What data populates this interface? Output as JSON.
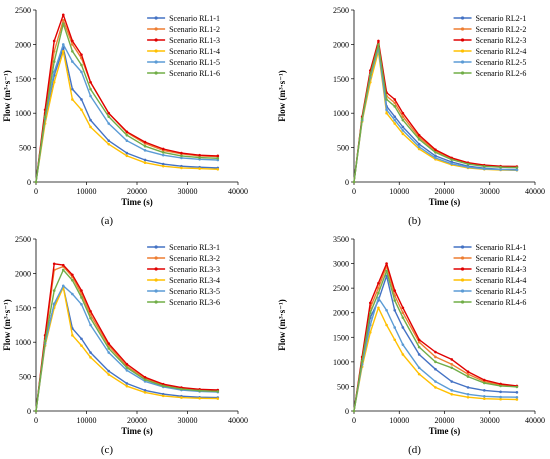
{
  "figure": {
    "panels": [
      {
        "label": "(a)",
        "chart_data": {
          "type": "line",
          "xlabel": "Time (s)",
          "ylabel": "Flow (m³·s⁻¹)",
          "xlim": [
            0,
            40000
          ],
          "ylim": [
            0,
            2500
          ],
          "xticks": [
            0,
            10000,
            20000,
            30000,
            40000
          ],
          "yticks": [
            0,
            500,
            1000,
            1500,
            2000,
            2500
          ],
          "grid": false,
          "legend": "top-right",
          "x": [
            0,
            1800,
            3600,
            5400,
            7200,
            9000,
            10800,
            14400,
            18000,
            21600,
            25200,
            28800,
            32400,
            36000
          ],
          "series": [
            {
              "name": "Scenario RL1-1",
              "color": "#4472C4",
              "values": [
                0,
                900,
                1550,
                1950,
                1350,
                1200,
                900,
                600,
                420,
                320,
                260,
                230,
                215,
                205
              ]
            },
            {
              "name": "Scenario RL1-2",
              "color": "#ED7D31",
              "values": [
                0,
                1000,
                1900,
                2350,
                2000,
                1800,
                1450,
                1000,
                720,
                560,
                460,
                410,
                380,
                370
              ]
            },
            {
              "name": "Scenario RL1-3",
              "color": "#E00000",
              "values": [
                0,
                1050,
                2050,
                2430,
                2050,
                1850,
                1450,
                1000,
                730,
                580,
                480,
                420,
                390,
                380
              ]
            },
            {
              "name": "Scenario RL1-4",
              "color": "#FFC000",
              "values": [
                0,
                850,
                1450,
                1900,
                1200,
                1050,
                800,
                550,
                380,
                280,
                230,
                205,
                195,
                185
              ]
            },
            {
              "name": "Scenario RL1-5",
              "color": "#5B9BD5",
              "values": [
                0,
                920,
                1600,
                2000,
                1750,
                1600,
                1250,
                850,
                600,
                460,
                390,
                350,
                330,
                320
              ]
            },
            {
              "name": "Scenario RL1-6",
              "color": "#70AD47",
              "values": [
                0,
                950,
                1750,
                2300,
                1900,
                1700,
                1350,
                950,
                680,
                520,
                430,
                380,
                355,
                345
              ]
            }
          ]
        }
      },
      {
        "label": "(b)",
        "chart_data": {
          "type": "line",
          "xlabel": "Time (s)",
          "ylabel": "Flow (m³·s⁻¹)",
          "xlim": [
            0,
            40000
          ],
          "ylim": [
            0,
            2500
          ],
          "xticks": [
            0,
            10000,
            20000,
            30000,
            40000
          ],
          "yticks": [
            0,
            500,
            1000,
            1500,
            2000,
            2500
          ],
          "grid": false,
          "legend": "top-right",
          "x": [
            0,
            1800,
            3600,
            5400,
            7200,
            9000,
            10800,
            14400,
            18000,
            21600,
            25200,
            28800,
            32400,
            36000
          ],
          "series": [
            {
              "name": "Scenario RL2-1",
              "color": "#4472C4",
              "values": [
                0,
                900,
                1500,
                1950,
                1100,
                950,
                800,
                550,
                380,
                290,
                230,
                200,
                185,
                180
              ]
            },
            {
              "name": "Scenario RL2-2",
              "color": "#ED7D31",
              "values": [
                0,
                930,
                1580,
                2020,
                1250,
                1150,
                950,
                650,
                450,
                340,
                270,
                235,
                220,
                215
              ]
            },
            {
              "name": "Scenario RL2-3",
              "color": "#E00000",
              "values": [
                0,
                950,
                1620,
                2050,
                1300,
                1200,
                1000,
                680,
                470,
                350,
                280,
                245,
                230,
                225
              ]
            },
            {
              "name": "Scenario RL2-4",
              "color": "#FFC000",
              "values": [
                0,
                880,
                1450,
                1900,
                1000,
                850,
                700,
                480,
                330,
                250,
                205,
                185,
                175,
                170
              ]
            },
            {
              "name": "Scenario RL2-5",
              "color": "#5B9BD5",
              "values": [
                0,
                900,
                1520,
                1950,
                1050,
                900,
                750,
                510,
                350,
                265,
                215,
                190,
                180,
                175
              ]
            },
            {
              "name": "Scenario RL2-6",
              "color": "#70AD47",
              "values": [
                0,
                920,
                1560,
                2000,
                1200,
                1100,
                900,
                620,
                430,
                325,
                260,
                228,
                215,
                210
              ]
            }
          ]
        }
      },
      {
        "label": "(c)",
        "chart_data": {
          "type": "line",
          "xlabel": "Time (s)",
          "ylabel": "Flow (m³·s⁻¹)",
          "xlim": [
            0,
            40000
          ],
          "ylim": [
            0,
            2500
          ],
          "xticks": [
            0,
            10000,
            20000,
            30000,
            40000
          ],
          "yticks": [
            0,
            500,
            1000,
            1500,
            2000,
            2500
          ],
          "grid": false,
          "legend": "top-right",
          "x": [
            0,
            1800,
            3600,
            5400,
            7200,
            9000,
            10800,
            14400,
            18000,
            21600,
            25200,
            28800,
            32400,
            36000
          ],
          "series": [
            {
              "name": "Scenario RL3-1",
              "color": "#4472C4",
              "values": [
                0,
                1000,
                1550,
                1800,
                1200,
                1050,
                850,
                580,
                400,
                300,
                245,
                215,
                200,
                195
              ]
            },
            {
              "name": "Scenario RL3-2",
              "color": "#ED7D31",
              "values": [
                0,
                1050,
                2050,
                2100,
                1950,
                1700,
                1400,
                950,
                650,
                470,
                380,
                330,
                305,
                295
              ]
            },
            {
              "name": "Scenario RL3-3",
              "color": "#E00000",
              "values": [
                0,
                1100,
                2140,
                2120,
                1980,
                1750,
                1450,
                980,
                680,
                490,
                390,
                340,
                315,
                305
              ]
            },
            {
              "name": "Scenario RL3-4",
              "color": "#FFC000",
              "values": [
                0,
                950,
                1500,
                1800,
                1100,
                950,
                780,
                530,
                360,
                270,
                220,
                195,
                185,
                180
              ]
            },
            {
              "name": "Scenario RL3-5",
              "color": "#5B9BD5",
              "values": [
                0,
                980,
                1560,
                1820,
                1700,
                1550,
                1250,
                850,
                590,
                430,
                350,
                305,
                285,
                275
              ]
            },
            {
              "name": "Scenario RL3-6",
              "color": "#70AD47",
              "values": [
                0,
                1020,
                1750,
                2050,
                1900,
                1650,
                1350,
                910,
                630,
                455,
                365,
                318,
                295,
                285
              ]
            }
          ]
        }
      },
      {
        "label": "(d)",
        "chart_data": {
          "type": "line",
          "xlabel": "Time (s)",
          "ylabel": "Flow (m³·s⁻¹)",
          "xlim": [
            0,
            40000
          ],
          "ylim": [
            0,
            3500
          ],
          "xticks": [
            0,
            10000,
            20000,
            30000,
            40000
          ],
          "yticks": [
            0,
            500,
            1000,
            1500,
            2000,
            2500,
            3000,
            3500
          ],
          "grid": false,
          "legend": "top-right",
          "x": [
            0,
            1800,
            3600,
            5400,
            7200,
            9000,
            10800,
            14400,
            18000,
            21600,
            25200,
            28800,
            32400,
            36000
          ],
          "series": [
            {
              "name": "Scenario RL4-1",
              "color": "#4472C4",
              "values": [
                0,
                1000,
                1900,
                2250,
                2750,
                2050,
                1700,
                1150,
                850,
                600,
                480,
                420,
                390,
                380
              ]
            },
            {
              "name": "Scenario RL4-2",
              "color": "#ED7D31",
              "values": [
                0,
                1050,
                2100,
                2500,
                2950,
                2350,
                2000,
                1400,
                1100,
                950,
                750,
                600,
                530,
                500
              ]
            },
            {
              "name": "Scenario RL4-3",
              "color": "#E00000",
              "values": [
                0,
                1100,
                2200,
                2600,
                3000,
                2450,
                2100,
                1450,
                1200,
                1050,
                800,
                630,
                550,
                510
              ]
            },
            {
              "name": "Scenario RL4-4",
              "color": "#FFC000",
              "values": [
                0,
                900,
                1600,
                2100,
                1750,
                1450,
                1150,
                750,
                480,
                340,
                280,
                250,
                240,
                235
              ]
            },
            {
              "name": "Scenario RL4-5",
              "color": "#5B9BD5",
              "values": [
                0,
                950,
                1750,
                2300,
                2050,
                1700,
                1350,
                880,
                600,
                420,
                340,
                300,
                285,
                280
              ]
            },
            {
              "name": "Scenario RL4-6",
              "color": "#70AD47",
              "values": [
                0,
                1020,
                2000,
                2400,
                2850,
                2250,
                1900,
                1300,
                1000,
                880,
                700,
                570,
                510,
                490
              ]
            }
          ]
        }
      }
    ]
  }
}
